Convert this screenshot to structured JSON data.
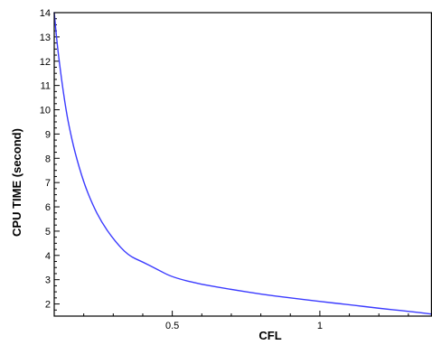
{
  "chart_data": {
    "type": "line",
    "title": "",
    "xlabel": "CFL",
    "ylabel": "CPU TIME (second)",
    "xlim": [
      0.1,
      1.38
    ],
    "ylim": [
      1.5,
      14
    ],
    "x_ticks": [
      {
        "value": 0.5,
        "label": "0.5"
      },
      {
        "value": 1.0,
        "label": "1"
      }
    ],
    "y_ticks": [
      {
        "value": 2,
        "label": "2"
      },
      {
        "value": 3,
        "label": "3"
      },
      {
        "value": 4,
        "label": "4"
      },
      {
        "value": 5,
        "label": "5"
      },
      {
        "value": 6,
        "label": "6"
      },
      {
        "value": 7,
        "label": "7"
      },
      {
        "value": 8,
        "label": "8"
      },
      {
        "value": 9,
        "label": "9"
      },
      {
        "value": 10,
        "label": "10"
      },
      {
        "value": 11,
        "label": "11"
      },
      {
        "value": 12,
        "label": "12"
      },
      {
        "value": 13,
        "label": "13"
      },
      {
        "value": 14,
        "label": "14"
      }
    ],
    "grid": false,
    "series": [
      {
        "color": "#3b3bff",
        "x": [
          0.1,
          0.11,
          0.12,
          0.13,
          0.14,
          0.15,
          0.17,
          0.2,
          0.23,
          0.26,
          0.3,
          0.35,
          0.4,
          0.45,
          0.5,
          0.6,
          0.7,
          0.8,
          0.9,
          1.0,
          1.1,
          1.2,
          1.3,
          1.38
        ],
        "y": [
          14.0,
          12.7,
          11.7,
          10.8,
          10.0,
          9.33,
          8.24,
          7.0,
          6.09,
          5.38,
          4.67,
          4.0,
          3.73,
          3.42,
          3.1,
          2.8,
          2.6,
          2.4,
          2.25,
          2.1,
          1.97,
          1.82,
          1.7,
          1.58
        ]
      }
    ]
  }
}
